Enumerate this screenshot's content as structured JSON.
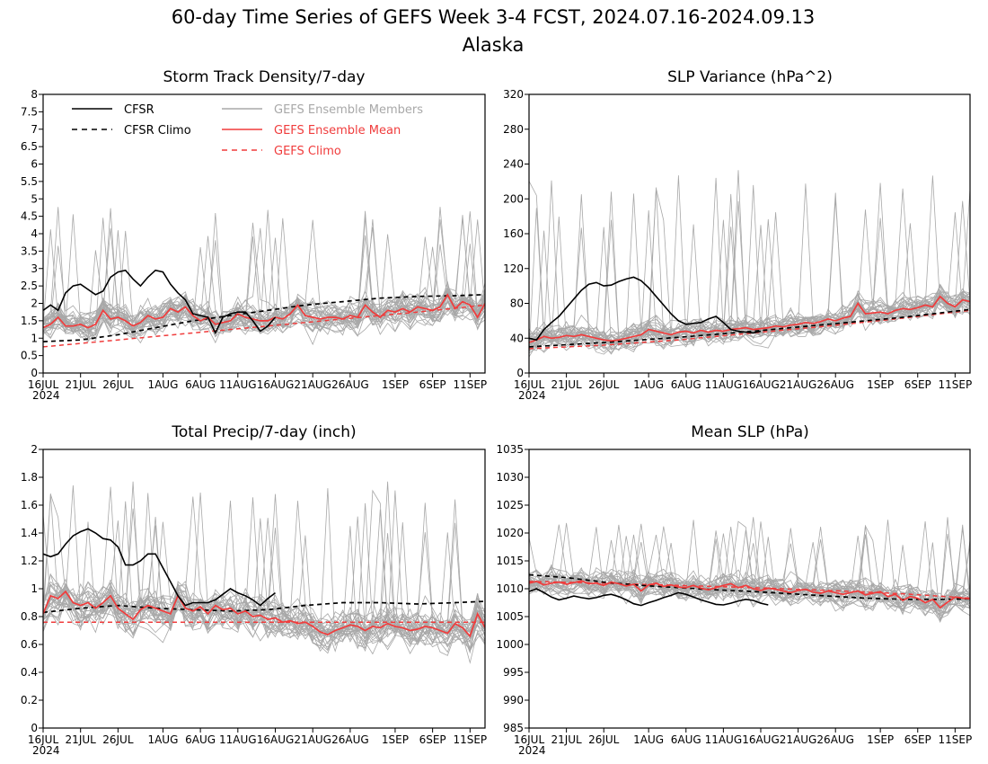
{
  "title": "60-day Time Series of GEFS Week 3-4 FCST, 2024.07.16-2024.09.13",
  "subtitle": "Alaska",
  "x_ticks": {
    "days": [
      0,
      5,
      10,
      16,
      21,
      26,
      31,
      36,
      41,
      47,
      52,
      57
    ],
    "labels": [
      "16JUL",
      "21JUL",
      "26JUL",
      "1AUG",
      "6AUG",
      "11AUG",
      "16AUG",
      "21AUG",
      "26AUG",
      "1SEP",
      "6SEP",
      "11SEP"
    ],
    "year_label": "2024"
  },
  "legend": {
    "cfsr": "CFSR",
    "cfsr_climo": "CFSR Climo",
    "gefs_members": "GEFS Ensemble Members",
    "gefs_mean": "GEFS Ensemble Mean",
    "gefs_climo": "GEFS Climo"
  },
  "colors": {
    "cfsr": "#000000",
    "members": "#a8a8a8",
    "gefs": "#f03c3c",
    "legend_members_text": "#a8a8a8"
  },
  "chart_data": [
    {
      "type": "line",
      "title": "Storm Track Density/7-day",
      "ylim": [
        0,
        8
      ],
      "y_ticks": [
        "0",
        "0.5",
        "1",
        "1.5",
        "2",
        "2.5",
        "3",
        "3.5",
        "4",
        "4.5",
        "5",
        "5.5",
        "6",
        "6.5",
        "7",
        "7.5",
        "8"
      ],
      "series": [
        {
          "name": "CFSR",
          "x": [
            0,
            1,
            2,
            3,
            4,
            5,
            6,
            7,
            8,
            9,
            10,
            11,
            12,
            13,
            14,
            15,
            16,
            17,
            18,
            19,
            20,
            21,
            22,
            23,
            24,
            25,
            26,
            27,
            28,
            29,
            30,
            31
          ],
          "values": [
            1.8,
            1.95,
            1.8,
            2.3,
            2.5,
            2.55,
            2.4,
            2.25,
            2.35,
            2.75,
            2.9,
            2.95,
            2.7,
            2.5,
            2.75,
            2.95,
            2.9,
            2.55,
            2.3,
            2.1,
            1.7,
            1.65,
            1.6,
            1.15,
            1.6,
            1.7,
            1.75,
            1.75,
            1.5,
            1.2,
            1.35,
            1.6
          ]
        },
        {
          "name": "CFSR Climo",
          "x": [
            0,
            5,
            10,
            15,
            20,
            25,
            30,
            35,
            40,
            45,
            50,
            55,
            59
          ],
          "values": [
            0.9,
            0.95,
            1.1,
            1.3,
            1.5,
            1.65,
            1.8,
            1.95,
            2.05,
            2.15,
            2.2,
            2.22,
            2.25
          ]
        },
        {
          "name": "GEFS Ensemble Mean",
          "x": [
            0,
            1,
            2,
            3,
            4,
            5,
            6,
            7,
            8,
            9,
            10,
            11,
            12,
            13,
            14,
            15,
            16,
            17,
            18,
            19,
            20,
            21,
            22,
            23,
            24,
            25,
            26,
            27,
            28,
            29,
            30,
            31,
            32,
            33,
            34,
            35,
            36,
            37,
            38,
            39,
            40,
            41,
            42,
            43,
            44,
            45,
            46,
            47,
            48,
            49,
            50,
            51,
            52,
            53,
            54,
            55,
            56,
            57,
            58,
            59
          ],
          "values": [
            1.3,
            1.4,
            1.6,
            1.35,
            1.35,
            1.4,
            1.3,
            1.4,
            1.8,
            1.55,
            1.6,
            1.5,
            1.35,
            1.45,
            1.65,
            1.55,
            1.6,
            1.85,
            1.75,
            1.9,
            1.65,
            1.5,
            1.6,
            1.4,
            1.45,
            1.5,
            1.7,
            1.6,
            1.55,
            1.5,
            1.5,
            1.6,
            1.55,
            1.7,
            1.95,
            1.65,
            1.6,
            1.55,
            1.6,
            1.6,
            1.55,
            1.65,
            1.6,
            1.95,
            1.75,
            1.6,
            1.8,
            1.75,
            1.85,
            1.75,
            1.9,
            1.85,
            1.8,
            1.9,
            2.25,
            1.85,
            2.05,
            1.95,
            1.6,
            2.0
          ]
        },
        {
          "name": "GEFS Climo",
          "x": [
            0,
            10,
            20,
            30,
            40,
            50,
            59
          ],
          "values": [
            0.75,
            0.95,
            1.15,
            1.35,
            1.55,
            1.75,
            1.95
          ]
        }
      ],
      "members_envelope": {
        "low": 0.3,
        "high": 3.2,
        "peak": 4.8
      }
    },
    {
      "type": "line",
      "title": "SLP Variance (hPa^2)",
      "ylim": [
        0,
        320
      ],
      "y_ticks": [
        "0",
        "40",
        "80",
        "120",
        "160",
        "200",
        "240",
        "280",
        "320"
      ],
      "series": [
        {
          "name": "CFSR",
          "x": [
            0,
            1,
            2,
            3,
            4,
            5,
            6,
            7,
            8,
            9,
            10,
            11,
            12,
            13,
            14,
            15,
            16,
            17,
            18,
            19,
            20,
            21,
            22,
            23,
            24,
            25,
            26,
            27,
            28,
            29,
            30,
            31
          ],
          "values": [
            40,
            38,
            50,
            58,
            65,
            75,
            85,
            95,
            102,
            104,
            100,
            101,
            105,
            108,
            110,
            106,
            98,
            88,
            78,
            68,
            60,
            56,
            57,
            58,
            62,
            65,
            58,
            50,
            48,
            47,
            46,
            48
          ]
        },
        {
          "name": "CFSR Climo",
          "x": [
            0,
            10,
            20,
            30,
            40,
            50,
            59
          ],
          "values": [
            30,
            35,
            41,
            48,
            56,
            64,
            73
          ]
        },
        {
          "name": "GEFS Ensemble Mean",
          "x": [
            0,
            1,
            2,
            3,
            4,
            5,
            6,
            7,
            8,
            9,
            10,
            11,
            12,
            13,
            14,
            15,
            16,
            17,
            18,
            19,
            20,
            21,
            22,
            23,
            24,
            25,
            26,
            27,
            28,
            29,
            30,
            31,
            32,
            33,
            34,
            35,
            36,
            37,
            38,
            39,
            40,
            41,
            42,
            43,
            44,
            45,
            46,
            47,
            48,
            49,
            50,
            51,
            52,
            53,
            54,
            55,
            56,
            57,
            58,
            59
          ],
          "values": [
            35,
            38,
            42,
            40,
            41,
            43,
            42,
            44,
            42,
            40,
            38,
            37,
            38,
            40,
            42,
            44,
            50,
            48,
            46,
            44,
            47,
            48,
            46,
            49,
            47,
            49,
            48,
            50,
            51,
            52,
            50,
            51,
            52,
            54,
            53,
            55,
            56,
            58,
            57,
            59,
            62,
            60,
            63,
            65,
            80,
            68,
            69,
            70,
            68,
            72,
            74,
            73,
            75,
            78,
            76,
            88,
            80,
            76,
            84,
            82
          ]
        },
        {
          "name": "GEFS Climo",
          "x": [
            0,
            10,
            20,
            30,
            40,
            50,
            59
          ],
          "values": [
            28,
            32,
            38,
            46,
            54,
            63,
            72
          ]
        }
      ],
      "members_envelope": {
        "low": 22,
        "high": 120,
        "peak": 235
      }
    },
    {
      "type": "line",
      "title": "Total Precip/7-day (inch)",
      "ylim": [
        0,
        2
      ],
      "y_ticks": [
        "0",
        "0.2",
        "0.4",
        "0.6",
        "0.8",
        "1",
        "1.2",
        "1.4",
        "1.6",
        "1.8",
        "2"
      ],
      "series": [
        {
          "name": "CFSR",
          "x": [
            0,
            1,
            2,
            3,
            4,
            5,
            6,
            7,
            8,
            9,
            10,
            11,
            12,
            13,
            14,
            15,
            16,
            17,
            18,
            19,
            20,
            21,
            22,
            23,
            24,
            25,
            26,
            27,
            28,
            29,
            30,
            31
          ],
          "values": [
            1.25,
            1.23,
            1.25,
            1.32,
            1.38,
            1.41,
            1.43,
            1.4,
            1.36,
            1.35,
            1.3,
            1.17,
            1.17,
            1.2,
            1.25,
            1.25,
            1.15,
            1.05,
            0.95,
            0.88,
            0.9,
            0.9,
            0.9,
            0.92,
            0.96,
            1.0,
            0.97,
            0.95,
            0.92,
            0.88,
            0.93,
            0.97
          ]
        },
        {
          "name": "CFSR Climo",
          "x": [
            0,
            5,
            10,
            15,
            20,
            25,
            30,
            35,
            40,
            45,
            50,
            55,
            59
          ],
          "values": [
            0.83,
            0.86,
            0.88,
            0.86,
            0.85,
            0.84,
            0.85,
            0.88,
            0.9,
            0.9,
            0.89,
            0.9,
            0.91
          ]
        },
        {
          "name": "GEFS Ensemble Mean",
          "x": [
            0,
            1,
            2,
            3,
            4,
            5,
            6,
            7,
            8,
            9,
            10,
            11,
            12,
            13,
            14,
            15,
            16,
            17,
            18,
            19,
            20,
            21,
            22,
            23,
            24,
            25,
            26,
            27,
            28,
            29,
            30,
            31,
            32,
            33,
            34,
            35,
            36,
            37,
            38,
            39,
            40,
            41,
            42,
            43,
            44,
            45,
            46,
            47,
            48,
            49,
            50,
            51,
            52,
            53,
            54,
            55,
            56,
            57,
            58,
            59
          ],
          "values": [
            0.82,
            0.95,
            0.93,
            0.98,
            0.9,
            0.88,
            0.9,
            0.86,
            0.9,
            0.95,
            0.86,
            0.82,
            0.78,
            0.85,
            0.88,
            0.86,
            0.84,
            0.82,
            0.95,
            0.86,
            0.84,
            0.87,
            0.82,
            0.88,
            0.85,
            0.86,
            0.82,
            0.84,
            0.8,
            0.81,
            0.78,
            0.79,
            0.76,
            0.77,
            0.75,
            0.76,
            0.73,
            0.69,
            0.67,
            0.7,
            0.72,
            0.74,
            0.73,
            0.7,
            0.73,
            0.72,
            0.75,
            0.73,
            0.72,
            0.7,
            0.71,
            0.73,
            0.72,
            0.7,
            0.68,
            0.75,
            0.72,
            0.66,
            0.82,
            0.72
          ]
        },
        {
          "name": "GEFS Climo",
          "x": [
            0,
            59
          ],
          "values": [
            0.76,
            0.76
          ]
        }
      ],
      "members_envelope": {
        "low": 0.3,
        "high": 1.25,
        "peak": 1.78
      }
    },
    {
      "type": "line",
      "title": "Mean SLP (hPa)",
      "ylim": [
        985,
        1035
      ],
      "y_ticks": [
        "985",
        "990",
        "995",
        "1000",
        "1005",
        "1010",
        "1015",
        "1020",
        "1025",
        "1030",
        "1035"
      ],
      "series": [
        {
          "name": "CFSR",
          "x": [
            0,
            1,
            2,
            3,
            4,
            5,
            6,
            7,
            8,
            9,
            10,
            11,
            12,
            13,
            14,
            15,
            16,
            17,
            18,
            19,
            20,
            21,
            22,
            23,
            24,
            25,
            26,
            27,
            28,
            29,
            30,
            31,
            32
          ],
          "values": [
            1009.5,
            1010,
            1009.3,
            1008.5,
            1008,
            1008.3,
            1008.7,
            1008.4,
            1008.2,
            1008.4,
            1008.8,
            1009,
            1008.6,
            1008,
            1007.3,
            1007,
            1007.5,
            1007.9,
            1008.4,
            1008.8,
            1009.3,
            1009,
            1008.5,
            1008,
            1007.6,
            1007.2,
            1007.1,
            1007.4,
            1007.8,
            1008.1,
            1007.9,
            1007.4,
            1007.1
          ]
        },
        {
          "name": "CFSR Climo",
          "x": [
            0,
            5,
            10,
            15,
            20,
            25,
            30,
            35,
            40,
            45,
            50,
            55,
            59
          ],
          "values": [
            1012.5,
            1012,
            1011.2,
            1010.6,
            1010.2,
            1009.8,
            1009.5,
            1009.1,
            1008.7,
            1008.3,
            1008.1,
            1008.1,
            1008.2
          ]
        },
        {
          "name": "GEFS Ensemble Mean",
          "x": [
            0,
            1,
            2,
            3,
            4,
            5,
            6,
            7,
            8,
            9,
            10,
            11,
            12,
            13,
            14,
            15,
            16,
            17,
            18,
            19,
            20,
            21,
            22,
            23,
            24,
            25,
            26,
            27,
            28,
            29,
            30,
            31,
            32,
            33,
            34,
            35,
            36,
            37,
            38,
            39,
            40,
            41,
            42,
            43,
            44,
            45,
            46,
            47,
            48,
            49,
            50,
            51,
            52,
            53,
            54,
            55,
            56,
            57,
            58,
            59
          ],
          "values": [
            1011,
            1011.3,
            1010.7,
            1011,
            1011.2,
            1010.8,
            1011.1,
            1011.4,
            1010.9,
            1011,
            1010.6,
            1011.2,
            1010.9,
            1010.5,
            1010.8,
            1009.6,
            1010.7,
            1011,
            1010.4,
            1010.7,
            1010.3,
            1010.2,
            1010.6,
            1010.1,
            1009.8,
            1010.2,
            1010.6,
            1010.9,
            1010.2,
            1010.6,
            1010,
            1009.7,
            1010.1,
            1009.9,
            1009.6,
            1009.3,
            1009.7,
            1009.9,
            1009.4,
            1009.2,
            1009.6,
            1009.3,
            1009,
            1009.3,
            1009.6,
            1008.9,
            1009.2,
            1009.5,
            1008.6,
            1009,
            1007.9,
            1008.6,
            1008.3,
            1007.5,
            1008.1,
            1006.6,
            1007.6,
            1008.5,
            1008.3,
            1008.2
          ]
        },
        {
          "name": "GEFS Climo",
          "x": [
            0,
            10,
            20,
            30,
            40,
            50,
            59
          ],
          "values": [
            1011.3,
            1011,
            1010.6,
            1010.2,
            1009.7,
            1009.1,
            1008.3
          ]
        }
      ],
      "members_envelope": {
        "low": 999.5,
        "high": 1016,
        "peak": 1023
      }
    }
  ]
}
